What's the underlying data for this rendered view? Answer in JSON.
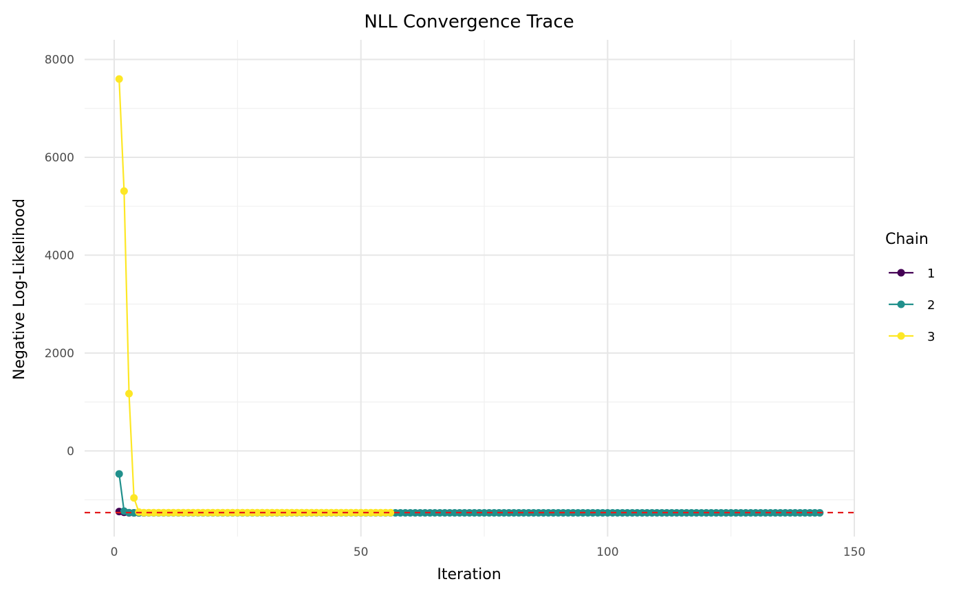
{
  "chart_data": {
    "type": "line",
    "title": "NLL Convergence Trace",
    "xlabel": "Iteration",
    "ylabel": "Negative Log-Likelihood",
    "xlim": [
      -6,
      150
    ],
    "ylim": [
      -1750,
      8400
    ],
    "x_ticks": [
      0,
      50,
      100,
      150
    ],
    "y_ticks": [
      0,
      2000,
      4000,
      6000,
      8000
    ],
    "x_ticks_minor": [
      25,
      75,
      125
    ],
    "y_ticks_minor": [
      -1000,
      1000,
      3000,
      5000,
      7000
    ],
    "grid": true,
    "legend": {
      "title": "Chain",
      "position": "right"
    },
    "reference_line": {
      "y": -1260,
      "color": "#e41a1c",
      "style": "dashed"
    },
    "series": [
      {
        "name": "1",
        "color": "#440154",
        "head": [
          [
            1,
            -1240
          ],
          [
            2,
            -1255
          ]
        ],
        "flat_from": 3,
        "flat_to": 6,
        "flat_value": -1265
      },
      {
        "name": "2",
        "color": "#21908c",
        "head": [
          [
            1,
            -470
          ],
          [
            2,
            -1230
          ],
          [
            3,
            -1262
          ]
        ],
        "flat_from": 4,
        "flat_to": 143,
        "flat_value": -1265
      },
      {
        "name": "3",
        "color": "#fde725",
        "head": [
          [
            1,
            7600
          ],
          [
            2,
            5310
          ],
          [
            3,
            1170
          ],
          [
            4,
            -960
          ],
          [
            5,
            -1250
          ]
        ],
        "flat_from": 6,
        "flat_to": 56,
        "flat_value": -1262
      }
    ]
  }
}
